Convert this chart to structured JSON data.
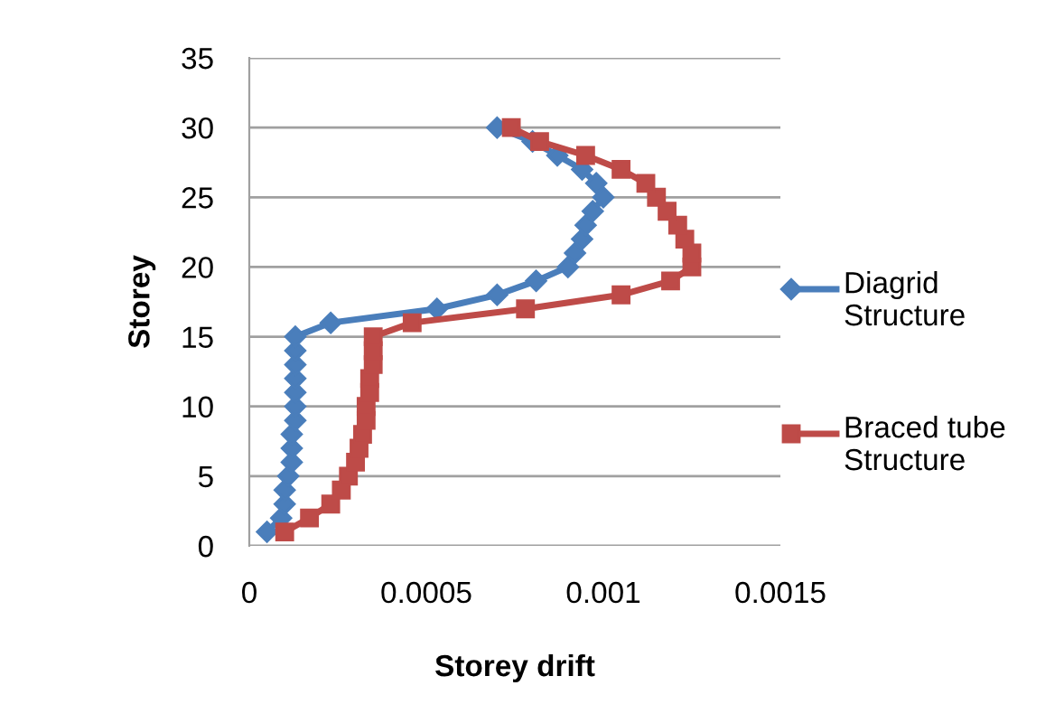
{
  "chart_data": {
    "type": "line",
    "xlabel": "Storey drift",
    "ylabel": "Storey",
    "xlim": [
      0,
      0.0015
    ],
    "xticks": [
      {
        "value": 0,
        "label": "0"
      },
      {
        "value": 0.0005,
        "label": "0.0005"
      },
      {
        "value": 0.001,
        "label": "0.001"
      },
      {
        "value": 0.0015,
        "label": "0.0015"
      }
    ],
    "ylim": [
      0,
      35
    ],
    "yticks": [
      0,
      5,
      10,
      15,
      20,
      25,
      30,
      35
    ],
    "grid": "y",
    "legend": "right",
    "series": [
      {
        "name": "Diagrid Structure",
        "color": "#4a7ebb",
        "marker": "diamond",
        "values": [
          1,
          2,
          3,
          4,
          5,
          6,
          7,
          8,
          9,
          10,
          11,
          12,
          13,
          14,
          15,
          16,
          17,
          18,
          19,
          20,
          21,
          22,
          23,
          24,
          25,
          26,
          27,
          28,
          29,
          30
        ],
        "x": [
          5e-05,
          9e-05,
          0.0001,
          0.0001,
          0.00011,
          0.00012,
          0.00012,
          0.00012,
          0.00013,
          0.00013,
          0.00013,
          0.00013,
          0.00013,
          0.00013,
          0.00013,
          0.00023,
          0.00053,
          0.0007,
          0.00081,
          0.0009,
          0.00092,
          0.00094,
          0.00095,
          0.00097,
          0.001,
          0.00098,
          0.00094,
          0.00087,
          0.0008,
          0.0007
        ]
      },
      {
        "name": "Braced tube Structure",
        "color": "#be4b48",
        "marker": "square",
        "values": [
          1,
          2,
          3,
          4,
          5,
          6,
          7,
          8,
          9,
          10,
          11,
          12,
          13,
          14,
          15,
          16,
          17,
          18,
          19,
          20,
          21,
          22,
          23,
          24,
          25,
          26,
          27,
          28,
          29,
          30
        ],
        "x": [
          0.0001,
          0.00017,
          0.00023,
          0.00026,
          0.00028,
          0.0003,
          0.00031,
          0.00032,
          0.00033,
          0.00033,
          0.00034,
          0.00034,
          0.00035,
          0.00035,
          0.00035,
          0.00046,
          0.00078,
          0.00105,
          0.00119,
          0.00125,
          0.00125,
          0.00123,
          0.00121,
          0.00118,
          0.00115,
          0.00112,
          0.00105,
          0.00095,
          0.00082,
          0.00074
        ]
      }
    ]
  }
}
